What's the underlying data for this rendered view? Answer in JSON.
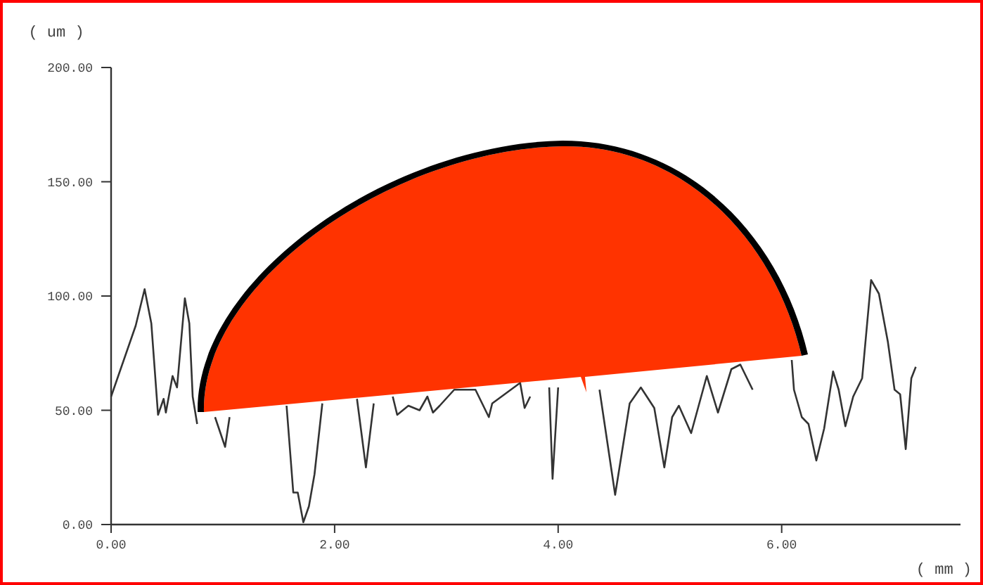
{
  "chart_data": {
    "type": "line",
    "xlabel": "( mm )",
    "ylabel": "( um )",
    "xlim": [
      0,
      7.6
    ],
    "ylim": [
      0,
      200
    ],
    "xticks": [
      {
        "value": 0,
        "label": "0.00"
      },
      {
        "value": 2,
        "label": "2.00"
      },
      {
        "value": 4,
        "label": "4.00"
      },
      {
        "value": 6,
        "label": "6.00"
      }
    ],
    "yticks": [
      {
        "value": 0,
        "label": "0.00"
      },
      {
        "value": 50,
        "label": "50.00"
      },
      {
        "value": 100,
        "label": "100.00"
      },
      {
        "value": 150,
        "label": "150.00"
      },
      {
        "value": 200,
        "label": "200.00"
      }
    ],
    "grid": false,
    "marker": "none",
    "line_style": "solid",
    "series": [
      {
        "color": "#333333",
        "x": [
          0,
          0.22,
          0.3,
          0.36,
          0.42,
          0.47,
          0.49,
          0.55,
          0.59,
          0.66,
          0.7,
          0.73,
          0.77,
          0.8,
          0.93,
          1.02,
          1.06,
          1.2,
          1.57,
          1.63,
          1.67,
          1.72,
          1.77,
          1.82,
          1.89,
          2.0,
          2.2,
          2.28,
          2.35,
          2.45,
          2.52,
          2.56,
          2.66,
          2.76,
          2.83,
          2.88,
          2.94,
          3.07,
          3.26,
          3.38,
          3.41,
          3.66,
          3.7,
          3.75,
          3.85,
          3.92,
          3.95,
          4.0,
          4.2,
          4.37,
          4.51,
          4.64,
          4.74,
          4.86,
          4.95,
          5.02,
          5.08,
          5.19,
          5.33,
          5.43,
          5.55,
          5.63,
          5.74,
          5.9,
          6.09,
          6.11,
          6.18,
          6.24,
          6.31,
          6.38,
          6.46,
          6.51,
          6.57,
          6.64,
          6.72,
          6.8,
          6.87,
          6.95,
          7.01,
          7.06,
          7.11,
          7.16,
          7.2
        ],
        "values": [
          56,
          87,
          103,
          88,
          48,
          55,
          49,
          65,
          60,
          99,
          88,
          56,
          44,
          null,
          47,
          34,
          47,
          null,
          52,
          14,
          14,
          1,
          8,
          22,
          53,
          null,
          55,
          25,
          53,
          null,
          56,
          48,
          52,
          50,
          56,
          49,
          52,
          59,
          59,
          47,
          53,
          62,
          51,
          56,
          null,
          60,
          20,
          60,
          null,
          59,
          13,
          53,
          60,
          51,
          25,
          47,
          52,
          40,
          65,
          49,
          68,
          70,
          59,
          null,
          72,
          59,
          47,
          44,
          28,
          42,
          67,
          59,
          43,
          56,
          64,
          107,
          101,
          80,
          59,
          57,
          33,
          64,
          69
        ]
      }
    ]
  }
}
